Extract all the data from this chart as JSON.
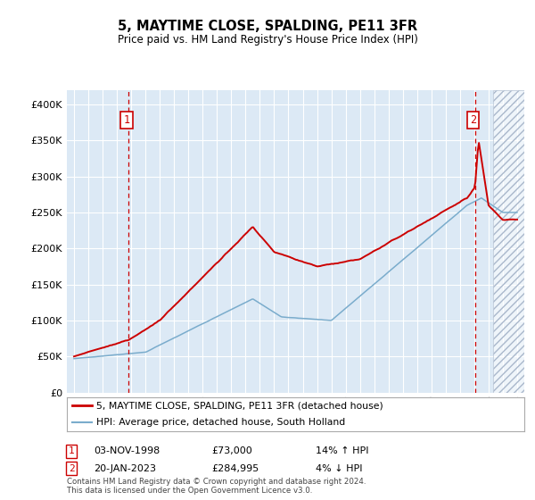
{
  "title": "5, MAYTIME CLOSE, SPALDING, PE11 3FR",
  "subtitle": "Price paid vs. HM Land Registry's House Price Index (HPI)",
  "legend_line1": "5, MAYTIME CLOSE, SPALDING, PE11 3FR (detached house)",
  "legend_line2": "HPI: Average price, detached house, South Holland",
  "annotation1_date": "03-NOV-1998",
  "annotation1_price": "£73,000",
  "annotation1_hpi": "14% ↑ HPI",
  "annotation1_year": 1998.83,
  "annotation2_date": "20-JAN-2023",
  "annotation2_price": "£284,995",
  "annotation2_hpi": "4% ↓ HPI",
  "annotation2_year": 2023.05,
  "footer": "Contains HM Land Registry data © Crown copyright and database right 2024.\nThis data is licensed under the Open Government Licence v3.0.",
  "red_color": "#cc0000",
  "blue_color": "#7aaccc",
  "bg_color": "#dce9f5",
  "ylim_max": 420000,
  "ylim_min": 0,
  "xmin": 1994.5,
  "xmax": 2026.5,
  "future_start": 2024.3
}
